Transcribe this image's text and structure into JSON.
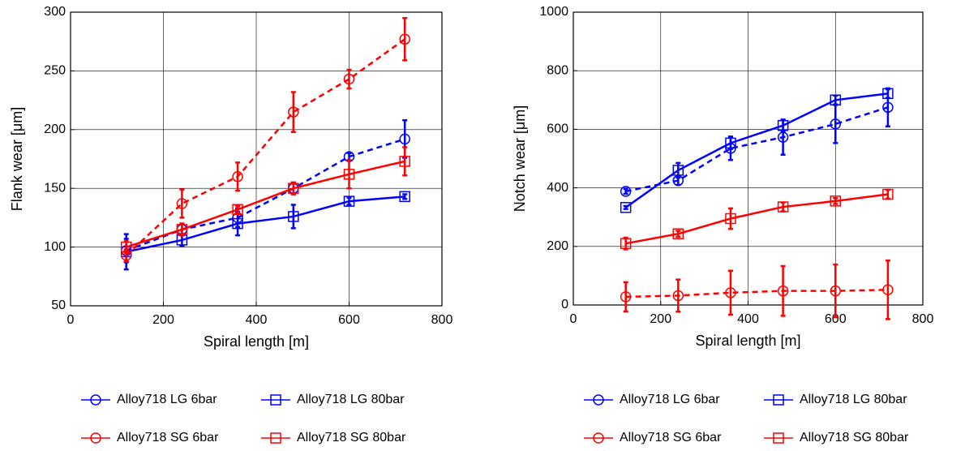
{
  "chart_data": [
    {
      "type": "line",
      "xlabel": "Spiral length [m]",
      "ylabel": "Flank wear [μm]",
      "x": [
        120,
        240,
        360,
        480,
        600,
        720
      ],
      "xlim": [
        0,
        800
      ],
      "xticks": [
        0,
        200,
        400,
        600,
        800
      ],
      "ylim": [
        50,
        300
      ],
      "yticks": [
        50,
        100,
        150,
        200,
        250,
        300
      ],
      "grid": true,
      "series": [
        {
          "name": "Alloy718 LG 6bar",
          "color": "#0000ff",
          "linestyle": "dashed",
          "marker": "circle",
          "values": [
            97,
            115,
            125,
            150,
            177,
            192
          ],
          "errors": [
            10,
            5,
            8,
            5,
            3,
            16
          ]
        },
        {
          "name": "Alloy718 LG 80bar",
          "color": "#0000ff",
          "linestyle": "solid",
          "marker": "square",
          "values": [
            96,
            106,
            120,
            126,
            139,
            143
          ],
          "errors": [
            15,
            5,
            10,
            10,
            3,
            2
          ]
        },
        {
          "name": "Alloy718 SG 6bar",
          "color": "#ff0000",
          "linestyle": "dashed",
          "marker": "circle",
          "values": [
            93,
            137,
            160,
            215,
            243,
            277
          ],
          "errors": [
            5,
            12,
            12,
            17,
            8,
            18
          ]
        },
        {
          "name": "Alloy718 SG 80bar",
          "color": "#ff0000",
          "linestyle": "solid",
          "marker": "square",
          "values": [
            100,
            115,
            132,
            150,
            162,
            173
          ],
          "errors": [
            5,
            5,
            3,
            5,
            12,
            12
          ]
        }
      ]
    },
    {
      "type": "line",
      "xlabel": "Spiral length [m]",
      "ylabel": "Notch wear [μm]",
      "x": [
        120,
        240,
        360,
        480,
        600,
        720
      ],
      "xlim": [
        0,
        800
      ],
      "xticks": [
        0,
        200,
        400,
        600,
        800
      ],
      "ylim": [
        0,
        1000
      ],
      "yticks": [
        0,
        200,
        400,
        600,
        800,
        1000
      ],
      "grid": true,
      "series": [
        {
          "name": "Alloy718 LG 6bar",
          "color": "#0000ff",
          "linestyle": "dashed",
          "marker": "circle",
          "values": [
            388,
            425,
            535,
            573,
            618,
            675
          ],
          "errors": [
            8,
            15,
            40,
            60,
            65,
            65
          ]
        },
        {
          "name": "Alloy718 LG 80bar",
          "color": "#0000ff",
          "linestyle": "solid",
          "marker": "square",
          "values": [
            333,
            460,
            553,
            613,
            700,
            722
          ],
          "errors": [
            5,
            25,
            20,
            20,
            15,
            15
          ]
        },
        {
          "name": "Alloy718 SG 6bar",
          "color": "#ff0000",
          "linestyle": "dashed",
          "marker": "circle",
          "values": [
            28,
            32,
            42,
            48,
            48,
            52
          ],
          "errors": [
            50,
            55,
            75,
            85,
            90,
            100
          ]
        },
        {
          "name": "Alloy718 SG 80bar",
          "color": "#ff0000",
          "linestyle": "solid",
          "marker": "square",
          "values": [
            210,
            243,
            295,
            335,
            355,
            378
          ],
          "errors": [
            20,
            10,
            35,
            15,
            10,
            15
          ]
        }
      ]
    }
  ]
}
